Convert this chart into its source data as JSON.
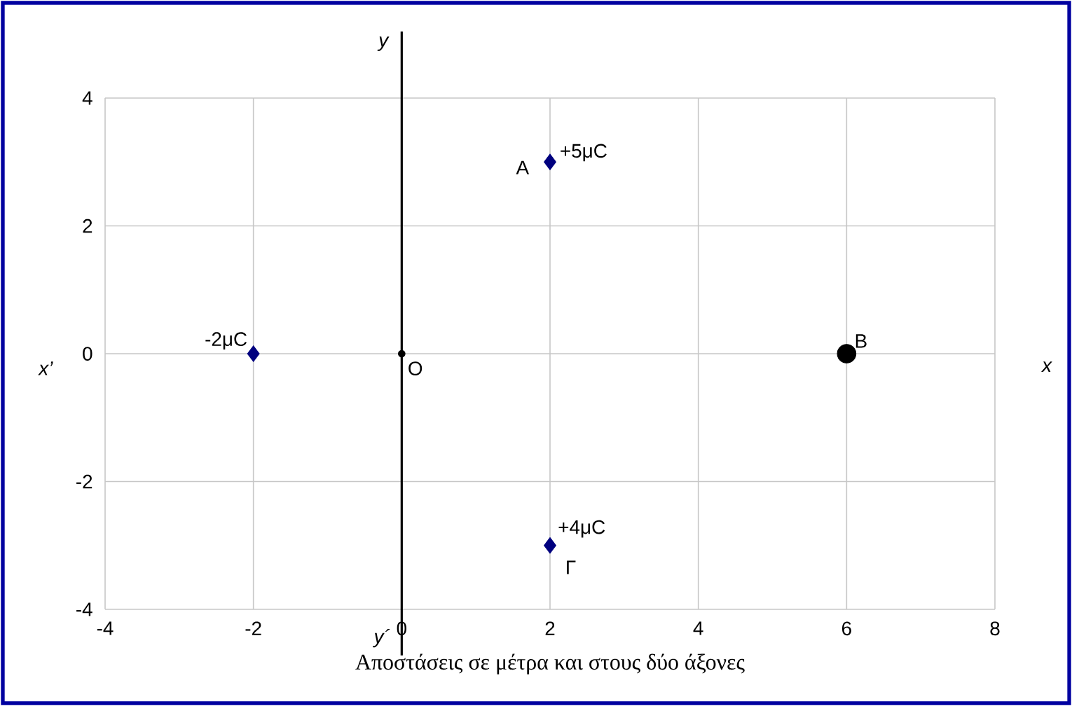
{
  "chart_data": {
    "type": "scatter",
    "xlabel": "Αποστάσεις σε μέτρα και στους δύο άξονες",
    "xlim": [
      -4,
      8
    ],
    "ylim": [
      -4,
      4
    ],
    "xticks": [
      -4,
      -2,
      0,
      2,
      4,
      6,
      8
    ],
    "yticks": [
      -4,
      -2,
      0,
      2,
      4
    ],
    "grid": true,
    "series": [
      {
        "color": "#00007f",
        "marker": "diamond",
        "x": [
          -2,
          2,
          2
        ],
        "values": [
          0,
          3,
          -3
        ]
      },
      {
        "color": "#000000",
        "marker": "circle",
        "x": [
          6
        ],
        "values": [
          0
        ]
      },
      {
        "color": "#000000",
        "marker": "circle",
        "x": [
          0
        ],
        "values": [
          0
        ]
      }
    ],
    "ref_lines": [
      {
        "axis": "x",
        "value": 0,
        "color": "#000000"
      }
    ],
    "annotations": [
      {
        "text": "+5μC",
        "x": 2,
        "y": 3
      },
      {
        "text": "A",
        "x": 2,
        "y": 3
      },
      {
        "text": "-2μC",
        "x": -2,
        "y": 0
      },
      {
        "text": "O",
        "x": 0,
        "y": 0
      },
      {
        "text": "B",
        "x": 6,
        "y": 0
      },
      {
        "text": "+4μC",
        "x": 2,
        "y": -3
      },
      {
        "text": "Γ",
        "x": 2,
        "y": -3
      },
      "x",
      "x’",
      "y",
      "y´"
    ]
  }
}
